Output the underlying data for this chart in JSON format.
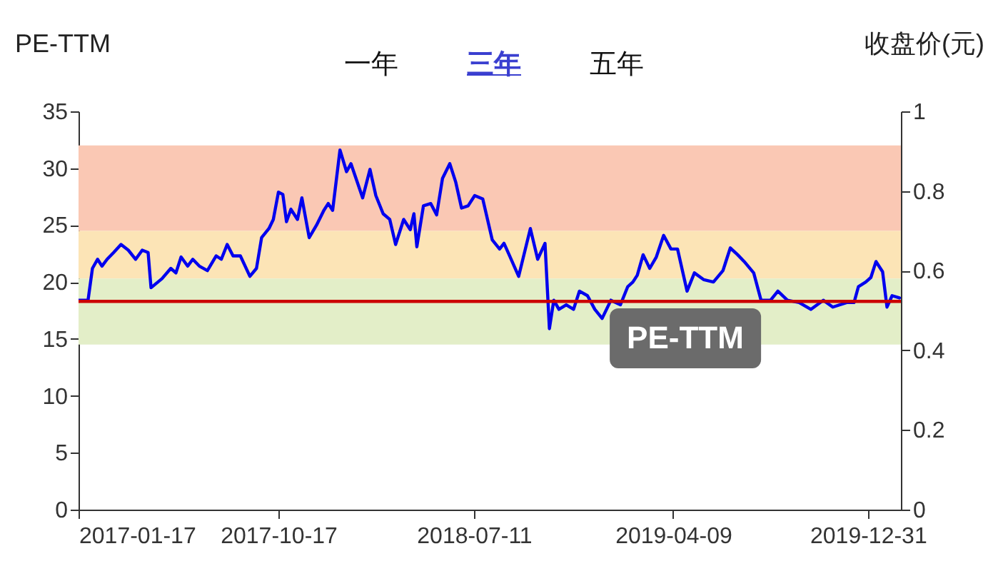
{
  "chart_data": {
    "type": "line",
    "ylabel": "PE-TTM",
    "y2label": "收盘价(元)",
    "annotations": [
      "一年",
      "三年",
      "五年",
      "PE-TTM"
    ],
    "x": [
      "2017-01-17",
      "2017-01-30",
      "2017-02-05",
      "2017-02-12",
      "2017-02-18",
      "2017-02-25",
      "2017-03-06",
      "2017-03-16",
      "2017-03-26",
      "2017-04-05",
      "2017-04-14",
      "2017-04-22",
      "2017-04-26",
      "2017-05-11",
      "2017-05-23",
      "2017-05-30",
      "2017-06-06",
      "2017-06-15",
      "2017-06-22",
      "2017-07-01",
      "2017-07-12",
      "2017-07-24",
      "2017-07-31",
      "2017-08-08",
      "2017-08-16",
      "2017-08-26",
      "2017-09-08",
      "2017-09-17",
      "2017-09-24",
      "2017-10-04",
      "2017-10-10",
      "2017-10-17",
      "2017-10-23",
      "2017-10-28",
      "2017-11-03",
      "2017-11-12",
      "2017-11-18",
      "2017-11-28",
      "2017-12-08",
      "2017-12-18",
      "2017-12-24",
      "2017-12-30",
      "2018-01-09",
      "2018-01-18",
      "2018-01-24",
      "2018-02-01",
      "2018-02-09",
      "2018-02-19",
      "2018-02-27",
      "2018-03-09",
      "2018-03-18",
      "2018-03-26",
      "2018-04-06",
      "2018-04-15",
      "2018-04-20",
      "2018-04-24",
      "2018-05-03",
      "2018-05-13",
      "2018-05-21",
      "2018-05-29",
      "2018-06-08",
      "2018-06-16",
      "2018-06-24",
      "2018-07-03",
      "2018-07-12",
      "2018-07-23",
      "2018-08-05",
      "2018-08-15",
      "2018-08-21",
      "2018-08-28",
      "2018-09-10",
      "2018-09-26",
      "2018-10-06",
      "2018-10-16",
      "2018-10-22",
      "2018-10-28",
      "2018-11-04",
      "2018-11-14",
      "2018-11-24",
      "2018-12-02",
      "2018-12-13",
      "2018-12-23",
      "2019-01-02",
      "2019-01-14",
      "2019-01-27",
      "2019-02-06",
      "2019-02-13",
      "2019-02-19",
      "2019-02-27",
      "2019-03-08",
      "2019-03-17",
      "2019-03-27",
      "2019-04-06",
      "2019-04-15",
      "2019-04-28",
      "2019-05-08",
      "2019-05-21",
      "2019-06-03",
      "2019-06-16",
      "2019-06-26",
      "2019-07-06",
      "2019-07-15",
      "2019-07-28",
      "2019-08-07",
      "2019-08-20",
      "2019-08-30",
      "2019-09-12",
      "2019-09-28",
      "2019-10-14",
      "2019-10-31",
      "2019-11-13",
      "2019-12-02",
      "2019-12-12",
      "2019-12-18",
      "2019-12-28",
      "2020-01-04",
      "2020-01-11",
      "2020-01-20",
      "2020-01-26",
      "2020-02-02",
      "2020-02-12"
    ],
    "series": [
      {
        "color": "#0000ee",
        "values": [
          18.4,
          18.4,
          21.2,
          22.0,
          21.4,
          22.0,
          22.6,
          23.3,
          22.8,
          22.0,
          22.8,
          22.6,
          19.5,
          20.3,
          21.2,
          20.8,
          22.2,
          21.4,
          22.0,
          21.4,
          21.0,
          22.3,
          22.0,
          23.3,
          22.3,
          22.3,
          20.5,
          21.2,
          23.9,
          24.7,
          25.5,
          27.9,
          27.7,
          25.3,
          26.4,
          25.5,
          27.4,
          23.9,
          25.0,
          26.3,
          26.9,
          26.3,
          31.6,
          29.7,
          30.4,
          28.9,
          27.4,
          29.9,
          27.6,
          26.0,
          25.5,
          23.3,
          25.5,
          24.6,
          26.0,
          23.1,
          26.7,
          26.9,
          25.9,
          29.1,
          30.4,
          28.8,
          26.5,
          26.7,
          27.6,
          27.3,
          23.7,
          22.9,
          23.4,
          22.4,
          20.5,
          24.7,
          22.0,
          23.4,
          15.9,
          18.4,
          17.6,
          18.0,
          17.6,
          19.2,
          18.8,
          17.6,
          16.8,
          18.4,
          18.0,
          19.6,
          20.0,
          20.6,
          22.4,
          21.2,
          22.2,
          24.1,
          22.9,
          22.9,
          19.2,
          20.8,
          20.2,
          20.0,
          21.0,
          23.0,
          22.4,
          21.8,
          20.8,
          18.4,
          18.4,
          19.2,
          18.4,
          18.2,
          17.6,
          18.4,
          17.8,
          18.2,
          18.2,
          19.6,
          20.0,
          20.4,
          21.8,
          20.9,
          17.8,
          18.8,
          18.6
        ]
      }
    ],
    "xlim": [
      "2017-01-17",
      "2020-02-14"
    ],
    "xticks": [
      "2017-01-17",
      "2017-10-17",
      "2018-07-11",
      "2019-04-09",
      "2019-12-31"
    ],
    "ylim": [
      0,
      35
    ],
    "yticks": [
      0,
      5,
      10,
      15,
      20,
      25,
      30,
      35
    ],
    "y2lim": [
      0,
      1
    ],
    "y2ticks": [
      0,
      0.2,
      0.4,
      0.6,
      0.8,
      1
    ],
    "bands": [
      {
        "axis": "y",
        "from": 24.5,
        "to": 32,
        "color": "#fac8b4"
      },
      {
        "axis": "y",
        "from": 20.3,
        "to": 24.5,
        "color": "#fce4b6"
      },
      {
        "axis": "y",
        "from": 14.5,
        "to": 20.3,
        "color": "#e3eec8"
      }
    ],
    "ref_lines": [
      {
        "axis": "y",
        "value": 18.3,
        "color": "#cc0000"
      }
    ],
    "grid": false,
    "marker": "none",
    "line_style": "solid"
  }
}
